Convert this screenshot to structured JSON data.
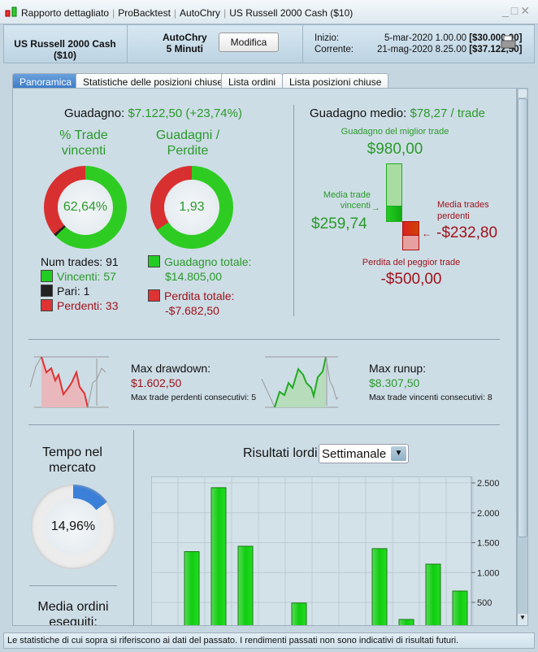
{
  "window": {
    "title_parts": [
      "Rapporto dettagliato",
      "ProBacktest",
      "AutoChry",
      "US Russell 2000 Cash ($10)"
    ]
  },
  "header": {
    "instrument": "US Russell 2000 Cash ($10)",
    "system": "AutoChry",
    "timeframe": "5 Minuti",
    "modify_label": "Modifica",
    "start_label": "Inizio:",
    "start_date": "5-mar-2020 1.00.00",
    "start_capital": "[$30.000,00]",
    "current_label": "Corrente:",
    "current_date": "21-mag-2020 8.25.00",
    "current_capital": "[$37.122,50]"
  },
  "tabs": [
    "Panoramica",
    "Statistiche delle posizioni chiuse",
    "Lista ordini",
    "Lista posizioni chiuse"
  ],
  "overview": {
    "gain_label": "Guadagno:",
    "gain_value": "$7.122,50 (+23,74%)",
    "win_title_1": "% Trade",
    "win_title_2": "vincenti",
    "win_pct_text": "62,64%",
    "win_pct": 62.64,
    "even_pct": 1.1,
    "ratio_title_1": "Guadagni /",
    "ratio_title_2": "Perdite",
    "ratio_text": "1,93",
    "ratio_green_pct": 65.8,
    "num_trades": "Num trades: 91",
    "winners": "Vincenti: 57",
    "even": "Pari: 1",
    "losers": "Perdenti: 33",
    "total_gain_label": "Guadagno totale:",
    "total_gain": "$14.805,00",
    "total_loss_label": "Perdita totale:",
    "total_loss": "-$7.682,50",
    "avg_gain_label": "Guadagno medio:",
    "avg_gain_value": "$78,27 / trade",
    "best_label": "Guadagno del miglior trade",
    "best_value": "$980,00",
    "avg_win_label_1": "Media trade",
    "avg_win_label_2": "vincenti",
    "avg_win_value": "$259,74",
    "avg_loss_label_1": "Media trades",
    "avg_loss_label_2": "perdenti",
    "avg_loss_value": "-$232,80",
    "worst_label": "Perdita del peggior trade",
    "worst_value": "-$500,00",
    "dd_label": "Max drawdown:",
    "dd_value": "$1.602,50",
    "dd_consec": "Max trade perdenti consecutivi:  5",
    "ru_label": "Max runup:",
    "ru_value": "$8.307,50",
    "ru_consec": "Max trade vincenti consecutivi: 8",
    "time_title_1": "Tempo nel",
    "time_title_2": "mercato",
    "time_text": "14,96%",
    "time_pct": 14.96,
    "orders_title_1": "Media ordini",
    "orders_title_2": "eseguiti:",
    "results_label": "Risultati lordi",
    "period_select": "Settimanale"
  },
  "chart_data": {
    "type": "bar",
    "title": "Risultati lordi",
    "values": [
      1350,
      2420,
      1440,
      0,
      490,
      0,
      0,
      1400,
      215,
      1140,
      690
    ],
    "yticks": [
      "2.500",
      "2.000",
      "1.500",
      "1.000",
      "500"
    ],
    "ytick_values": [
      2500,
      2000,
      1500,
      1000,
      500
    ],
    "ylim": [
      0,
      2600
    ],
    "color": "#22cc11"
  },
  "status": "Le statistiche di cui sopra si riferiscono ai dati del passato. I rendimenti passati non sono indicativi di risultati futuri."
}
